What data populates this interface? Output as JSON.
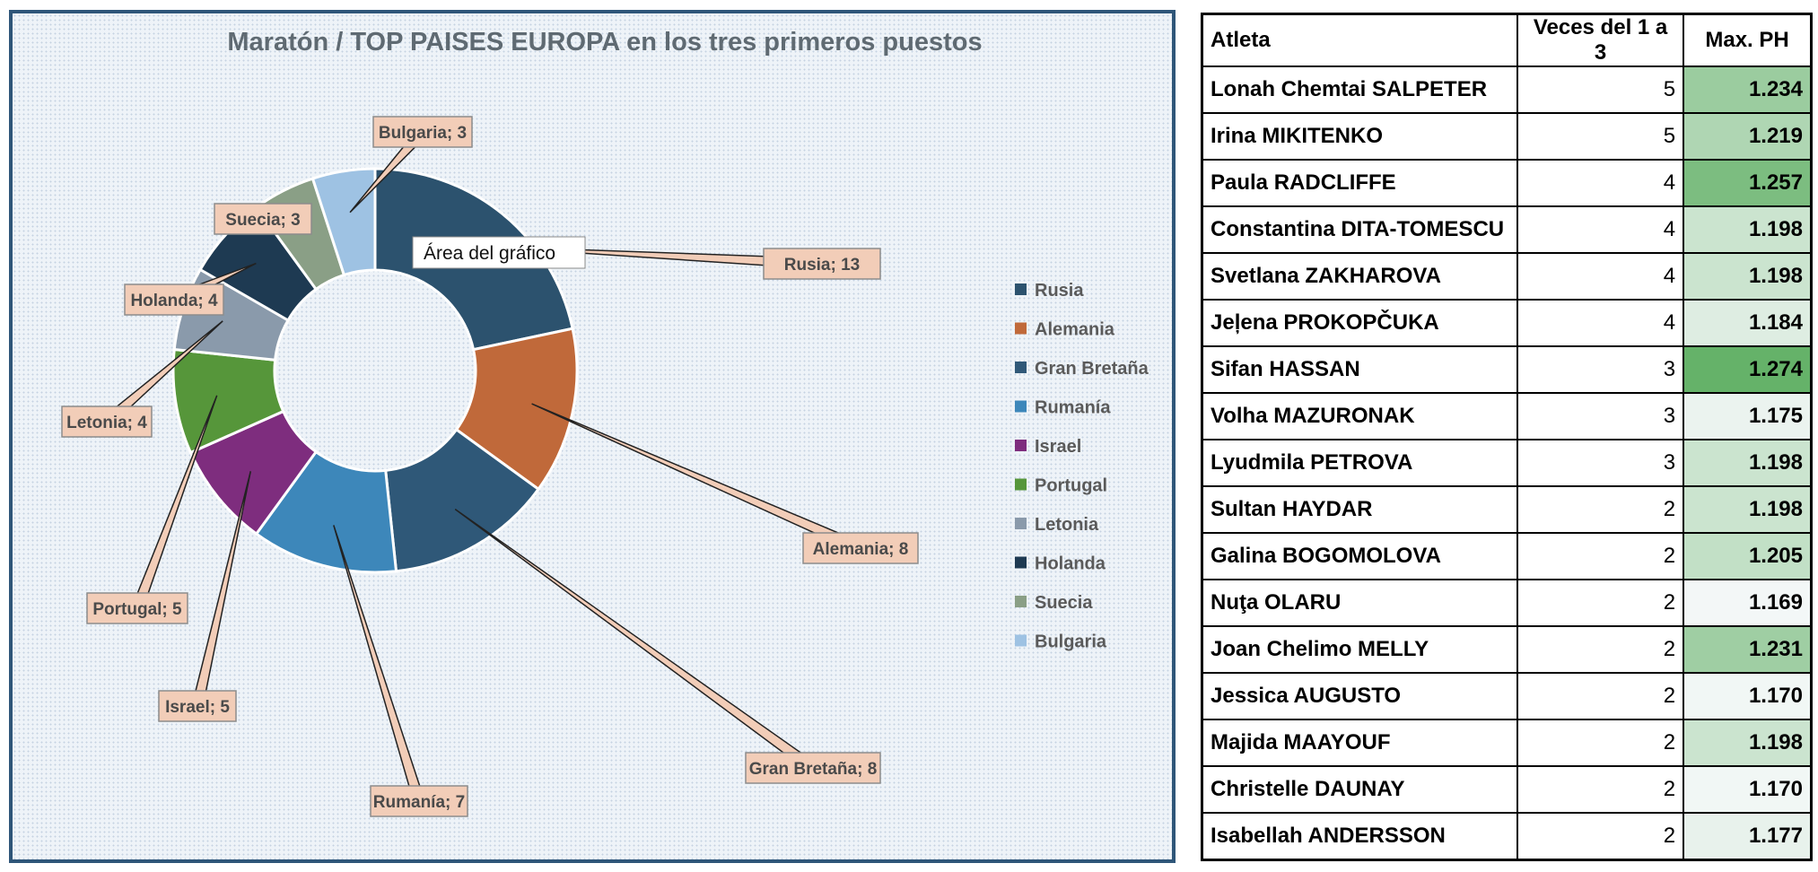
{
  "chart_data": {
    "type": "pie",
    "title": "Maratón / TOP  PAISES EUROPA en los tres primeros puestos",
    "categories": [
      "Rusia",
      "Alemania",
      "Gran Bretaña",
      "Rumanía",
      "Israel",
      "Portugal",
      "Letonia",
      "Holanda",
      "Suecia",
      "Bulgaria"
    ],
    "values": [
      13,
      8,
      8,
      7,
      5,
      5,
      4,
      4,
      3,
      3
    ],
    "data_labels": [
      "Rusia; 13",
      "Alemania; 8",
      "Gran Bretaña; 8",
      "Rumanía; 7",
      "Israel; 5",
      "Portugal; 5",
      "Letonia; 4",
      "Holanda; 4",
      "Suecia; 3",
      "Bulgaria; 3"
    ],
    "colors": [
      "#2c526e",
      "#c0693a",
      "#2f5878",
      "#3d87ba",
      "#7e2d7e",
      "#56963a",
      "#8a9aab",
      "#1e3a52",
      "#8a9f86",
      "#9ec2e3"
    ],
    "donut": true,
    "legend_position": "right",
    "tooltip": "Área del gráfico"
  },
  "table": {
    "headers": [
      "Atleta",
      "Veces del 1 a 3",
      "Max. PH"
    ],
    "rows": [
      {
        "name": "Lonah Chemtai SALPETER",
        "count": "5",
        "ph": "1.234"
      },
      {
        "name": "Irina MIKITENKO",
        "count": "5",
        "ph": "1.219"
      },
      {
        "name": "Paula RADCLIFFE",
        "count": "4",
        "ph": "1.257"
      },
      {
        "name": "Constantina DITA-TOMESCU",
        "count": "4",
        "ph": "1.198"
      },
      {
        "name": "Svetlana ZAKHAROVA",
        "count": "4",
        "ph": "1.198"
      },
      {
        "name": "Jeļena PROKOPČUKA",
        "count": "4",
        "ph": "1.184"
      },
      {
        "name": "Sifan HASSAN",
        "count": "3",
        "ph": "1.274"
      },
      {
        "name": "Volha MAZURONAK",
        "count": "3",
        "ph": "1.175"
      },
      {
        "name": "Lyudmila PETROVA",
        "count": "3",
        "ph": "1.198"
      },
      {
        "name": "Sultan HAYDAR",
        "count": "2",
        "ph": "1.198"
      },
      {
        "name": "Galina BOGOMOLOVA",
        "count": "2",
        "ph": "1.205"
      },
      {
        "name": "Nuţa OLARU",
        "count": "2",
        "ph": "1.169"
      },
      {
        "name": "Joan Chelimo MELLY",
        "count": "2",
        "ph": "1.231"
      },
      {
        "name": "Jessica AUGUSTO",
        "count": "2",
        "ph": "1.170"
      },
      {
        "name": "Majida MAAYOUF",
        "count": "2",
        "ph": "1.198"
      },
      {
        "name": "Christelle DAUNAY",
        "count": "2",
        "ph": "1.170"
      },
      {
        "name": "Isabellah ANDERSSON",
        "count": "2",
        "ph": "1.177"
      }
    ]
  }
}
